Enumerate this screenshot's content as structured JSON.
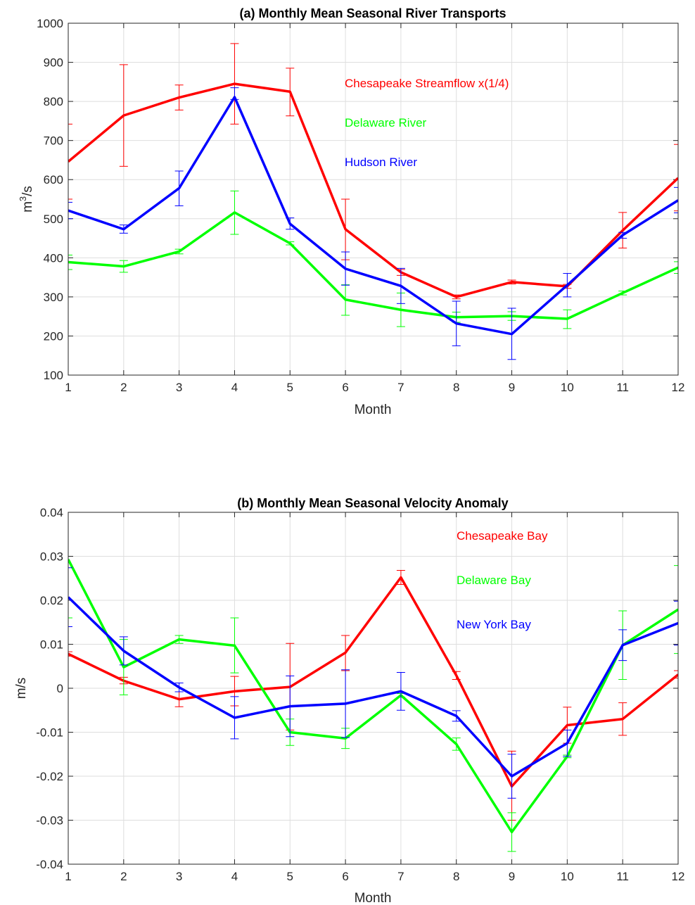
{
  "chart_data": [
    {
      "type": "line",
      "title": "(a) Monthly Mean Seasonal River Transports",
      "xlabel": "Month",
      "ylabel": "m³/s",
      "ylabel_base": "m",
      "ylabel_sup": "3",
      "ylabel_rest": "/s",
      "xlim": [
        1,
        12
      ],
      "ylim": [
        100,
        1000
      ],
      "x": [
        1,
        2,
        3,
        4,
        5,
        6,
        7,
        8,
        9,
        10,
        11,
        12
      ],
      "x_ticks": [
        "1",
        "2",
        "3",
        "4",
        "5",
        "6",
        "7",
        "8",
        "9",
        "10",
        "11",
        "12"
      ],
      "y_ticks": [
        "100",
        "200",
        "300",
        "400",
        "500",
        "600",
        "700",
        "800",
        "900",
        "1000"
      ],
      "grid": true,
      "legend_position": "top-center",
      "series": [
        {
          "name": "Chesapeake Streamflow x(1/4)",
          "color": "#ff0000",
          "values": [
            646,
            764,
            810,
            845,
            825,
            473,
            363,
            300,
            338,
            327,
            470,
            604
          ],
          "err_low": [
            550,
            634,
            778,
            742,
            763,
            395,
            355,
            295,
            333,
            322,
            425,
            520
          ],
          "err_high": [
            742,
            894,
            842,
            948,
            885,
            550,
            370,
            305,
            343,
            332,
            516,
            690
          ]
        },
        {
          "name": "Delaware River",
          "color": "#00ff00",
          "values": [
            389,
            378,
            416,
            516,
            437,
            293,
            267,
            248,
            251,
            244,
            310,
            375
          ],
          "err_low": [
            370,
            363,
            410,
            460,
            433,
            253,
            224,
            235,
            240,
            219,
            305,
            360
          ],
          "err_high": [
            407,
            393,
            422,
            571,
            441,
            331,
            310,
            261,
            262,
            267,
            315,
            390
          ]
        },
        {
          "name": "Hudson River",
          "color": "#0000ff",
          "values": [
            521,
            473,
            578,
            811,
            487,
            372,
            328,
            232,
            205,
            330,
            458,
            547
          ],
          "err_low": [
            500,
            463,
            533,
            805,
            473,
            330,
            283,
            175,
            140,
            300,
            450,
            515
          ],
          "err_high": [
            542,
            484,
            622,
            835,
            502,
            415,
            373,
            289,
            271,
            360,
            465,
            580
          ]
        }
      ]
    },
    {
      "type": "line",
      "title": "(b) Monthly Mean Seasonal Velocity Anomaly",
      "xlabel": "Month",
      "ylabel": "m/s",
      "xlim": [
        1,
        12
      ],
      "ylim": [
        -0.04,
        0.04
      ],
      "x": [
        1,
        2,
        3,
        4,
        5,
        6,
        7,
        8,
        9,
        10,
        11,
        12
      ],
      "x_ticks": [
        "1",
        "2",
        "3",
        "4",
        "5",
        "6",
        "7",
        "8",
        "9",
        "10",
        "11",
        "12"
      ],
      "y_ticks": [
        "-0.04",
        "-0.03",
        "-0.02",
        "-0.01",
        "0",
        "0.01",
        "0.02",
        "0.03",
        "0.04"
      ],
      "grid": true,
      "legend_position": "top-right",
      "series": [
        {
          "name": "Chesapeake Bay",
          "color": "#ff0000",
          "values": [
            0.0078,
            0.0017,
            -0.0025,
            -0.0007,
            0.0003,
            0.0081,
            0.0252,
            0.0029,
            -0.0223,
            -0.0084,
            -0.007,
            0.0031
          ],
          "err_low": [
            0.0073,
            0.001,
            -0.0042,
            -0.004,
            -0.0095,
            0.004,
            0.0236,
            0.002,
            -0.03,
            -0.0125,
            -0.0107,
            0.0023
          ],
          "err_high": [
            0.0083,
            0.0025,
            -0.0008,
            0.0027,
            0.0102,
            0.012,
            0.0268,
            0.0038,
            -0.0143,
            -0.0043,
            -0.0033,
            0.004
          ]
        },
        {
          "name": "Delaware Bay",
          "color": "#00ff00",
          "values": [
            0.0293,
            0.0048,
            0.0111,
            0.0097,
            -0.01,
            -0.0114,
            -0.0016,
            -0.0127,
            -0.0327,
            -0.0155,
            0.0098,
            0.0179
          ],
          "err_low": [
            0.016,
            -0.0015,
            0.0102,
            0.0035,
            -0.013,
            -0.0137,
            -0.002,
            -0.0141,
            -0.0371,
            -0.0158,
            0.002,
            0.0079
          ],
          "err_high": [
            0.0426,
            0.0111,
            0.012,
            0.016,
            -0.007,
            -0.0091,
            -0.0012,
            -0.0113,
            -0.0283,
            -0.0152,
            0.0176,
            0.0279
          ]
        },
        {
          "name": "New York Bay",
          "color": "#0000ff",
          "values": [
            0.0207,
            0.0085,
            0.0002,
            -0.0067,
            -0.0041,
            -0.0035,
            -0.0007,
            -0.0063,
            -0.02,
            -0.0125,
            0.0098,
            0.0148
          ],
          "err_low": [
            0.014,
            0.0053,
            -0.0008,
            -0.0115,
            -0.011,
            -0.0112,
            -0.005,
            -0.0075,
            -0.025,
            -0.0155,
            0.0063,
            0.0098
          ],
          "err_high": [
            0.0274,
            0.0117,
            0.0012,
            -0.0019,
            0.0028,
            0.0042,
            0.0036,
            -0.0051,
            -0.015,
            -0.0095,
            0.0133,
            0.0198
          ]
        }
      ]
    }
  ]
}
